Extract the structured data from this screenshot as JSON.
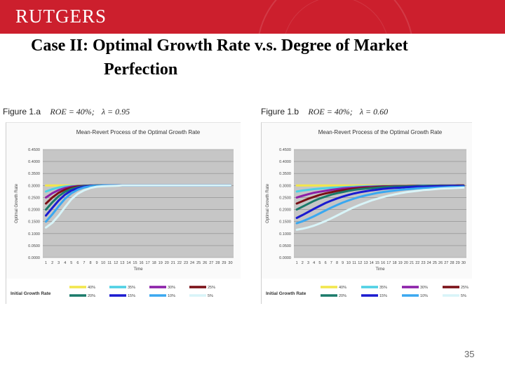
{
  "header": {
    "logo_text": "RUTGERS",
    "banner_color": "#cc1f2d"
  },
  "slide": {
    "title_line1": "Case II: Optimal Growth Rate v.s. Degree of Market",
    "title_line2": "Perfection",
    "page_number": "35"
  },
  "figures": [
    {
      "label": "Figure 1.a",
      "roe_text": "ROE = 40%;",
      "lambda_text": "λ = 0.95"
    },
    {
      "label": "Figure 1.b",
      "roe_text": "ROE = 40%;",
      "lambda_text": "λ = 0.60"
    }
  ],
  "legend_colors": [
    "#f2e64a",
    "#4dd0e4",
    "#8b1fa8",
    "#7a0f16",
    "#1a7a6a",
    "#1a1ad0",
    "#3aa8f0",
    "#d8f4f8"
  ],
  "chart_data": [
    {
      "type": "line",
      "title": "Mean-Revert Process of the Optimal Growth Rate",
      "xlabel": "Time",
      "ylabel": "Optimal Growth Rate",
      "ylim": [
        0,
        0.45
      ],
      "yticks": [
        "0.4500",
        "0.4000",
        "0.3500",
        "0.3000",
        "0.2500",
        "0.2000",
        "0.1500",
        "0.1000",
        "0.0500",
        "0.0000"
      ],
      "x": [
        1,
        2,
        3,
        4,
        5,
        6,
        7,
        8,
        9,
        10,
        11,
        12,
        13,
        14,
        15,
        16,
        17,
        18,
        19,
        20,
        21,
        22,
        23,
        24,
        25,
        26,
        27,
        28,
        29,
        30
      ],
      "legend_title": "Initial Growth Rate",
      "grid": true,
      "series": [
        {
          "name": "40%",
          "values": [
            0.3,
            0.3,
            0.3,
            0.3,
            0.3,
            0.3,
            0.3,
            0.3,
            0.3,
            0.3,
            0.3,
            0.3,
            0.3,
            0.3,
            0.3,
            0.3,
            0.3,
            0.3,
            0.3,
            0.3,
            0.3,
            0.3,
            0.3,
            0.3,
            0.3,
            0.3,
            0.3,
            0.3,
            0.3,
            0.3
          ]
        },
        {
          "name": "35%",
          "values": [
            0.275,
            0.285,
            0.292,
            0.296,
            0.298,
            0.299,
            0.3,
            0.3,
            0.3,
            0.3,
            0.3,
            0.3,
            0.3,
            0.3,
            0.3,
            0.3,
            0.3,
            0.3,
            0.3,
            0.3,
            0.3,
            0.3,
            0.3,
            0.3,
            0.3,
            0.3,
            0.3,
            0.3,
            0.3,
            0.3
          ]
        },
        {
          "name": "30%",
          "values": [
            0.25,
            0.268,
            0.281,
            0.29,
            0.295,
            0.298,
            0.299,
            0.3,
            0.3,
            0.3,
            0.3,
            0.3,
            0.3,
            0.3,
            0.3,
            0.3,
            0.3,
            0.3,
            0.3,
            0.3,
            0.3,
            0.3,
            0.3,
            0.3,
            0.3,
            0.3,
            0.3,
            0.3,
            0.3,
            0.3
          ]
        },
        {
          "name": "25%",
          "values": [
            0.225,
            0.25,
            0.27,
            0.283,
            0.291,
            0.296,
            0.298,
            0.299,
            0.3,
            0.3,
            0.3,
            0.3,
            0.3,
            0.3,
            0.3,
            0.3,
            0.3,
            0.3,
            0.3,
            0.3,
            0.3,
            0.3,
            0.3,
            0.3,
            0.3,
            0.3,
            0.3,
            0.3,
            0.3,
            0.3
          ]
        },
        {
          "name": "20%",
          "values": [
            0.2,
            0.23,
            0.256,
            0.274,
            0.286,
            0.293,
            0.297,
            0.299,
            0.3,
            0.3,
            0.3,
            0.3,
            0.3,
            0.3,
            0.3,
            0.3,
            0.3,
            0.3,
            0.3,
            0.3,
            0.3,
            0.3,
            0.3,
            0.3,
            0.3,
            0.3,
            0.3,
            0.3,
            0.3,
            0.3
          ]
        },
        {
          "name": "15%",
          "values": [
            0.175,
            0.207,
            0.238,
            0.262,
            0.279,
            0.289,
            0.295,
            0.298,
            0.299,
            0.3,
            0.3,
            0.3,
            0.3,
            0.3,
            0.3,
            0.3,
            0.3,
            0.3,
            0.3,
            0.3,
            0.3,
            0.3,
            0.3,
            0.3,
            0.3,
            0.3,
            0.3,
            0.3,
            0.3,
            0.3
          ]
        },
        {
          "name": "10%",
          "values": [
            0.15,
            0.18,
            0.214,
            0.245,
            0.268,
            0.283,
            0.292,
            0.297,
            0.299,
            0.3,
            0.3,
            0.3,
            0.3,
            0.3,
            0.3,
            0.3,
            0.3,
            0.3,
            0.3,
            0.3,
            0.3,
            0.3,
            0.3,
            0.3,
            0.3,
            0.3,
            0.3,
            0.3,
            0.3,
            0.3
          ]
        },
        {
          "name": "5%",
          "values": [
            0.125,
            0.145,
            0.175,
            0.21,
            0.243,
            0.266,
            0.28,
            0.29,
            0.295,
            0.297,
            0.298,
            0.299,
            0.3,
            0.3,
            0.3,
            0.3,
            0.3,
            0.3,
            0.3,
            0.3,
            0.3,
            0.3,
            0.3,
            0.3,
            0.3,
            0.3,
            0.3,
            0.3,
            0.3,
            0.3
          ]
        }
      ]
    },
    {
      "type": "line",
      "title": "Mean-Revert Process of the Optimal Growth Rate",
      "xlabel": "Time",
      "ylabel": "Optimal Growth Rate",
      "ylim": [
        0,
        0.45
      ],
      "yticks": [
        "0.4500",
        "0.4000",
        "0.3500",
        "0.3000",
        "0.2500",
        "0.2000",
        "0.1500",
        "0.1000",
        "0.0500",
        "0.0000"
      ],
      "x": [
        1,
        2,
        3,
        4,
        5,
        6,
        7,
        8,
        9,
        10,
        11,
        12,
        13,
        14,
        15,
        16,
        17,
        18,
        19,
        20,
        21,
        22,
        23,
        24,
        25,
        26,
        27,
        28,
        29,
        30
      ],
      "legend_title": "Initial Growth Rate",
      "grid": true,
      "series": [
        {
          "name": "40%",
          "values": [
            0.3,
            0.3,
            0.3,
            0.3,
            0.3,
            0.3,
            0.3,
            0.3,
            0.3,
            0.3,
            0.3,
            0.3,
            0.3,
            0.3,
            0.3,
            0.3,
            0.3,
            0.3,
            0.3,
            0.3,
            0.3,
            0.3,
            0.3,
            0.3,
            0.3,
            0.3,
            0.3,
            0.3,
            0.3,
            0.3
          ]
        },
        {
          "name": "35%",
          "values": [
            0.275,
            0.279,
            0.282,
            0.285,
            0.287,
            0.289,
            0.291,
            0.292,
            0.293,
            0.294,
            0.295,
            0.296,
            0.297,
            0.297,
            0.298,
            0.298,
            0.298,
            0.299,
            0.299,
            0.299,
            0.299,
            0.3,
            0.3,
            0.3,
            0.3,
            0.3,
            0.3,
            0.3,
            0.3,
            0.3
          ]
        },
        {
          "name": "30%",
          "values": [
            0.25,
            0.257,
            0.264,
            0.27,
            0.274,
            0.278,
            0.282,
            0.285,
            0.288,
            0.29,
            0.291,
            0.293,
            0.294,
            0.295,
            0.296,
            0.297,
            0.297,
            0.298,
            0.298,
            0.298,
            0.299,
            0.299,
            0.299,
            0.299,
            0.299,
            0.3,
            0.3,
            0.3,
            0.3,
            0.3
          ]
        },
        {
          "name": "25%",
          "values": [
            0.225,
            0.235,
            0.245,
            0.253,
            0.261,
            0.267,
            0.272,
            0.277,
            0.281,
            0.284,
            0.287,
            0.289,
            0.291,
            0.292,
            0.294,
            0.295,
            0.296,
            0.296,
            0.297,
            0.297,
            0.298,
            0.298,
            0.298,
            0.299,
            0.299,
            0.299,
            0.299,
            0.299,
            0.3,
            0.3
          ]
        },
        {
          "name": "20%",
          "values": [
            0.2,
            0.212,
            0.224,
            0.236,
            0.246,
            0.254,
            0.262,
            0.268,
            0.273,
            0.278,
            0.282,
            0.285,
            0.287,
            0.289,
            0.291,
            0.293,
            0.294,
            0.295,
            0.296,
            0.296,
            0.297,
            0.297,
            0.298,
            0.298,
            0.298,
            0.299,
            0.299,
            0.299,
            0.299,
            0.299
          ]
        },
        {
          "name": "15%",
          "values": [
            0.165,
            0.177,
            0.19,
            0.203,
            0.215,
            0.227,
            0.237,
            0.246,
            0.254,
            0.261,
            0.267,
            0.272,
            0.276,
            0.28,
            0.283,
            0.286,
            0.288,
            0.29,
            0.291,
            0.293,
            0.294,
            0.295,
            0.295,
            0.296,
            0.297,
            0.297,
            0.297,
            0.298,
            0.298,
            0.298
          ]
        },
        {
          "name": "10%",
          "values": [
            0.143,
            0.151,
            0.161,
            0.172,
            0.184,
            0.196,
            0.208,
            0.219,
            0.229,
            0.238,
            0.246,
            0.253,
            0.259,
            0.264,
            0.269,
            0.273,
            0.276,
            0.279,
            0.282,
            0.284,
            0.286,
            0.288,
            0.289,
            0.29,
            0.291,
            0.292,
            0.293,
            0.294,
            0.294,
            0.295
          ]
        },
        {
          "name": "5%",
          "values": [
            0.116,
            0.12,
            0.126,
            0.133,
            0.142,
            0.152,
            0.163,
            0.175,
            0.187,
            0.199,
            0.21,
            0.22,
            0.229,
            0.238,
            0.245,
            0.252,
            0.258,
            0.263,
            0.268,
            0.272,
            0.275,
            0.278,
            0.281,
            0.283,
            0.285,
            0.287,
            0.288,
            0.289,
            0.29,
            0.291
          ]
        }
      ]
    }
  ]
}
